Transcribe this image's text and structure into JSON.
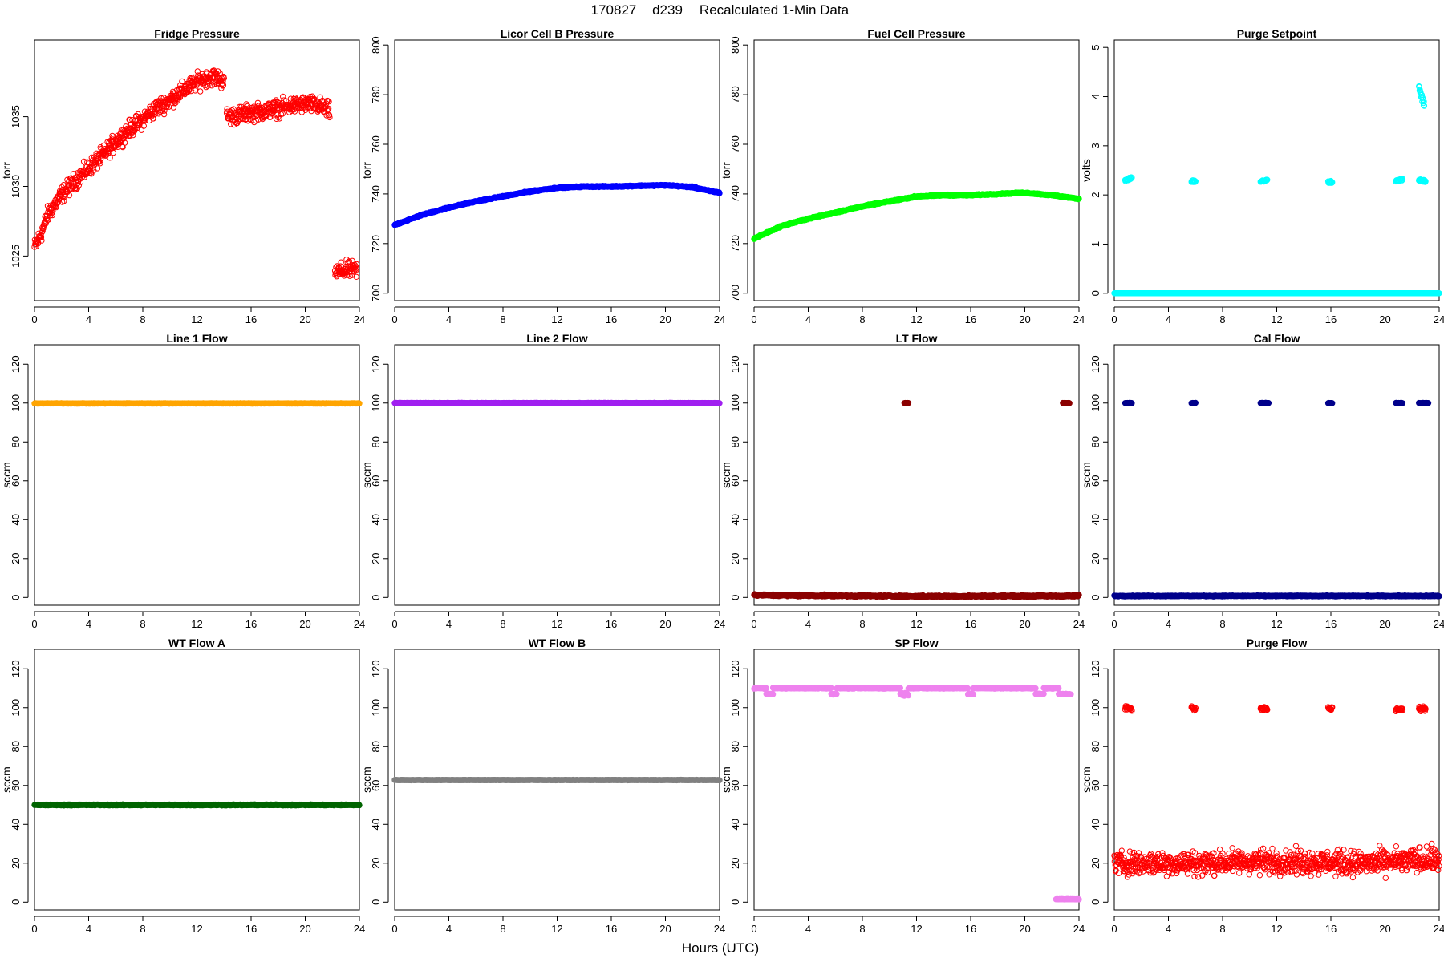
{
  "figure": {
    "title_date": "170827",
    "title_doy": "d239",
    "title_text": "Recalculated 1-Min Data",
    "xlabel": "Hours (UTC)"
  },
  "chart_data": [
    {
      "type": "scatter",
      "title": "Fridge Pressure",
      "ylabel": "torr",
      "color": "#ff0000",
      "marker": "open",
      "xlim": [
        0,
        24
      ],
      "xticks": [
        0,
        4,
        8,
        12,
        16,
        20,
        24
      ],
      "ylim": [
        1021.8,
        1040.5
      ],
      "yticks": [
        1025,
        1030,
        1035
      ],
      "series": [
        {
          "segments": [
            {
              "x": [
                0.0,
                0.5,
                1.0,
                2.0,
                3.0,
                4.0,
                5.0,
                6.0,
                7.0,
                8.0,
                9.0,
                10.0,
                11.0,
                12.0,
                13.0,
                14.0
              ],
              "y": [
                1025.6,
                1026.6,
                1028.0,
                1029.4,
                1030.4,
                1031.3,
                1032.2,
                1033.2,
                1034.1,
                1034.8,
                1035.6,
                1036.2,
                1036.9,
                1037.5,
                1037.9,
                1037.6
              ],
              "noise": 0.5
            },
            {
              "x": [
                14.2,
                15.0,
                16.0,
                17.0,
                18.0,
                19.0,
                20.0,
                21.0,
                21.8
              ],
              "y": [
                1035.0,
                1035.1,
                1035.3,
                1035.4,
                1035.6,
                1035.8,
                1035.9,
                1035.8,
                1035.4
              ],
              "noise": 0.5
            },
            {
              "x": [
                22.2,
                23.0,
                23.8
              ],
              "y": [
                1023.8,
                1024.0,
                1024.0
              ],
              "noise": 0.5
            }
          ]
        }
      ]
    },
    {
      "type": "scatter",
      "title": "Licor Cell B Pressure",
      "ylabel": "torr",
      "color": "#0000ff",
      "marker": "filled",
      "xlim": [
        0,
        24
      ],
      "xticks": [
        0,
        4,
        8,
        12,
        16,
        20,
        24
      ],
      "ylim": [
        697,
        802
      ],
      "yticks": [
        700,
        720,
        740,
        760,
        780,
        800
      ],
      "series": [
        {
          "segments": [
            {
              "x": [
                0,
                2,
                4,
                6,
                8,
                10,
                12,
                14,
                16,
                18,
                20,
                22,
                23,
                24
              ],
              "y": [
                727.5,
                731.5,
                734.5,
                737.0,
                739.0,
                741.0,
                742.5,
                743.0,
                743.0,
                743.3,
                743.5,
                742.8,
                741.5,
                740.5
              ],
              "noise": 0.2
            }
          ]
        }
      ]
    },
    {
      "type": "scatter",
      "title": "Fuel Cell Pressure",
      "ylabel": "torr",
      "color": "#00ff00",
      "marker": "filled",
      "xlim": [
        0,
        24
      ],
      "xticks": [
        0,
        4,
        8,
        12,
        16,
        20,
        24
      ],
      "ylim": [
        697,
        802
      ],
      "yticks": [
        700,
        720,
        740,
        760,
        780,
        800
      ],
      "series": [
        {
          "segments": [
            {
              "x": [
                0,
                2,
                4,
                6,
                8,
                10,
                12,
                14,
                16,
                18,
                20,
                22,
                24
              ],
              "y": [
                722.0,
                727.0,
                730.0,
                732.5,
                735.0,
                737.0,
                739.0,
                739.5,
                739.5,
                740.0,
                740.5,
                739.5,
                738.0
              ],
              "noise": 0.2
            }
          ]
        }
      ]
    },
    {
      "type": "scatter",
      "title": "Purge Setpoint",
      "ylabel": "volts",
      "color": "#00ffff",
      "marker": "open",
      "xlim": [
        0,
        24
      ],
      "xticks": [
        0,
        4,
        8,
        12,
        16,
        20,
        24
      ],
      "ylim": [
        -0.15,
        5.15
      ],
      "yticks": [
        0,
        1,
        2,
        3,
        4,
        5
      ],
      "series": [
        {
          "segments": [
            {
              "x": [
                0,
                24
              ],
              "y": [
                0,
                0
              ],
              "noise": 0
            },
            {
              "x": [
                0.8,
                1.3
              ],
              "y": [
                2.3,
                2.35
              ],
              "noise": 0.02
            },
            {
              "x": [
                5.7,
                6.0
              ],
              "y": [
                2.28,
                2.28
              ],
              "noise": 0.02
            },
            {
              "x": [
                10.8,
                11.3
              ],
              "y": [
                2.27,
                2.3
              ],
              "noise": 0.02
            },
            {
              "x": [
                15.8,
                16.1
              ],
              "y": [
                2.27,
                2.27
              ],
              "noise": 0.02
            },
            {
              "x": [
                20.8,
                21.3
              ],
              "y": [
                2.28,
                2.32
              ],
              "noise": 0.02
            },
            {
              "x": [
                22.5,
                23.0
              ],
              "y": [
                2.3,
                2.28
              ],
              "noise": 0.02
            },
            {
              "x": [
                22.5,
                22.9
              ],
              "y": [
                4.2,
                3.8
              ],
              "noise": 0.05
            }
          ]
        }
      ]
    },
    {
      "type": "scatter",
      "title": "Line 1 Flow",
      "ylabel": "sccm",
      "color": "#ffa500",
      "marker": "filled",
      "xlim": [
        0,
        24
      ],
      "xticks": [
        0,
        4,
        8,
        12,
        16,
        20,
        24
      ],
      "ylim": [
        -4,
        130
      ],
      "yticks": [
        0,
        20,
        40,
        60,
        80,
        100,
        120
      ],
      "series": [
        {
          "segments": [
            {
              "x": [
                0,
                24
              ],
              "y": [
                99.8,
                99.8
              ],
              "noise": 0.1
            }
          ]
        }
      ]
    },
    {
      "type": "scatter",
      "title": "Line 2 Flow",
      "ylabel": "sccm",
      "color": "#a020f0",
      "marker": "filled",
      "xlim": [
        0,
        24
      ],
      "xticks": [
        0,
        4,
        8,
        12,
        16,
        20,
        24
      ],
      "ylim": [
        -4,
        130
      ],
      "yticks": [
        0,
        20,
        40,
        60,
        80,
        100,
        120
      ],
      "series": [
        {
          "segments": [
            {
              "x": [
                0,
                24
              ],
              "y": [
                100.0,
                100.0
              ],
              "noise": 0.1
            }
          ]
        }
      ]
    },
    {
      "type": "scatter",
      "title": "LT Flow",
      "ylabel": "sccm",
      "color": "#8b0000",
      "marker": "filled",
      "xlim": [
        0,
        24
      ],
      "xticks": [
        0,
        4,
        8,
        12,
        16,
        20,
        24
      ],
      "ylim": [
        -4,
        130
      ],
      "yticks": [
        0,
        20,
        40,
        60,
        80,
        100,
        120
      ],
      "series": [
        {
          "segments": [
            {
              "x": [
                0,
                12,
                24
              ],
              "y": [
                1.2,
                0.6,
                0.8
              ],
              "noise": 0.4
            },
            {
              "x": [
                11.1,
                11.4
              ],
              "y": [
                100,
                100
              ],
              "noise": 0.1
            },
            {
              "x": [
                22.8,
                23.3
              ],
              "y": [
                100,
                100
              ],
              "noise": 0.1
            }
          ]
        }
      ]
    },
    {
      "type": "scatter",
      "title": "Cal Flow",
      "ylabel": "sccm",
      "color": "#00008b",
      "marker": "filled",
      "xlim": [
        0,
        24
      ],
      "xticks": [
        0,
        4,
        8,
        12,
        16,
        20,
        24
      ],
      "ylim": [
        -4,
        130
      ],
      "yticks": [
        0,
        20,
        40,
        60,
        80,
        100,
        120
      ],
      "series": [
        {
          "segments": [
            {
              "x": [
                0,
                24
              ],
              "y": [
                0.8,
                0.8
              ],
              "noise": 0.2
            },
            {
              "x": [
                0.8,
                1.3
              ],
              "y": [
                100,
                100
              ],
              "noise": 0.1
            },
            {
              "x": [
                5.7,
                6.0
              ],
              "y": [
                100,
                100
              ],
              "noise": 0.1
            },
            {
              "x": [
                10.8,
                11.4
              ],
              "y": [
                100,
                100
              ],
              "noise": 0.1
            },
            {
              "x": [
                15.8,
                16.1
              ],
              "y": [
                100,
                100
              ],
              "noise": 0.1
            },
            {
              "x": [
                20.8,
                21.3
              ],
              "y": [
                100,
                100
              ],
              "noise": 0.1
            },
            {
              "x": [
                22.5,
                23.2
              ],
              "y": [
                100,
                100
              ],
              "noise": 0.1
            }
          ]
        }
      ]
    },
    {
      "type": "scatter",
      "title": "WT Flow A",
      "ylabel": "sccm",
      "color": "#006400",
      "marker": "filled",
      "xlim": [
        0,
        24
      ],
      "xticks": [
        0,
        4,
        8,
        12,
        16,
        20,
        24
      ],
      "ylim": [
        -4,
        130
      ],
      "yticks": [
        0,
        20,
        40,
        60,
        80,
        100,
        120
      ],
      "series": [
        {
          "segments": [
            {
              "x": [
                0,
                24
              ],
              "y": [
                50,
                50
              ],
              "noise": 0.2
            }
          ]
        }
      ]
    },
    {
      "type": "scatter",
      "title": "WT Flow B",
      "ylabel": "sccm",
      "color": "#808080",
      "marker": "filled",
      "xlim": [
        0,
        24
      ],
      "xticks": [
        0,
        4,
        8,
        12,
        16,
        20,
        24
      ],
      "ylim": [
        -4,
        130
      ],
      "yticks": [
        0,
        20,
        40,
        60,
        80,
        100,
        120
      ],
      "series": [
        {
          "segments": [
            {
              "x": [
                0,
                24
              ],
              "y": [
                62.8,
                62.8
              ],
              "noise": 0.1
            }
          ]
        }
      ]
    },
    {
      "type": "scatter",
      "title": "SP Flow",
      "ylabel": "sccm",
      "color": "#ee82ee",
      "marker": "filled",
      "xlim": [
        0,
        24
      ],
      "xticks": [
        0,
        4,
        8,
        12,
        16,
        20,
        24
      ],
      "ylim": [
        -4,
        130
      ],
      "yticks": [
        0,
        20,
        40,
        60,
        80,
        100,
        120
      ],
      "series": [
        {
          "segments": [
            {
              "x": [
                0,
                0.9
              ],
              "y": [
                110,
                110
              ],
              "noise": 0.2
            },
            {
              "x": [
                0.9,
                1.4
              ],
              "y": [
                107,
                107
              ],
              "noise": 0.2
            },
            {
              "x": [
                1.4,
                5.7
              ],
              "y": [
                110,
                110
              ],
              "noise": 0.2
            },
            {
              "x": [
                5.7,
                6.1
              ],
              "y": [
                107,
                107
              ],
              "noise": 0.2
            },
            {
              "x": [
                6.1,
                10.8
              ],
              "y": [
                110,
                110
              ],
              "noise": 0.2
            },
            {
              "x": [
                10.8,
                11.4
              ],
              "y": [
                107,
                107
              ],
              "noise": 0.8
            },
            {
              "x": [
                11.4,
                15.8
              ],
              "y": [
                110,
                110
              ],
              "noise": 0.2
            },
            {
              "x": [
                15.8,
                16.2
              ],
              "y": [
                107,
                107
              ],
              "noise": 0.2
            },
            {
              "x": [
                16.2,
                20.8
              ],
              "y": [
                110,
                110
              ],
              "noise": 0.2
            },
            {
              "x": [
                20.8,
                21.4
              ],
              "y": [
                107,
                107
              ],
              "noise": 0.2
            },
            {
              "x": [
                21.4,
                22.5
              ],
              "y": [
                110,
                110
              ],
              "noise": 0.2
            },
            {
              "x": [
                22.5,
                23.4
              ],
              "y": [
                107,
                107
              ],
              "noise": 0.2
            },
            {
              "x": [
                22.3,
                24.0
              ],
              "y": [
                1.5,
                1.5
              ],
              "noise": 0.1
            }
          ]
        }
      ]
    },
    {
      "type": "scatter",
      "title": "Purge Flow",
      "ylabel": "sccm",
      "color": "#ff0000",
      "marker": "open",
      "xlim": [
        0,
        24
      ],
      "xticks": [
        0,
        4,
        8,
        12,
        16,
        20,
        24
      ],
      "ylim": [
        -4,
        130
      ],
      "yticks": [
        0,
        20,
        40,
        60,
        80,
        100,
        120
      ],
      "series": [
        {
          "segments": [
            {
              "x": [
                0,
                6,
                12,
                18,
                24
              ],
              "y": [
                20,
                20,
                21,
                20,
                22
              ],
              "noise": 5
            },
            {
              "x": [
                0.8,
                1.3
              ],
              "y": [
                100,
                99
              ],
              "noise": 1
            },
            {
              "x": [
                5.7,
                6.0
              ],
              "y": [
                100,
                99
              ],
              "noise": 1
            },
            {
              "x": [
                10.8,
                11.3
              ],
              "y": [
                99.5,
                99.5
              ],
              "noise": 0.8
            },
            {
              "x": [
                15.8,
                16.1
              ],
              "y": [
                99.5,
                99.5
              ],
              "noise": 0.8
            },
            {
              "x": [
                20.8,
                21.3
              ],
              "y": [
                99,
                99
              ],
              "noise": 0.8
            },
            {
              "x": [
                22.5,
                23.0
              ],
              "y": [
                99,
                100
              ],
              "noise": 1
            }
          ]
        }
      ]
    }
  ]
}
